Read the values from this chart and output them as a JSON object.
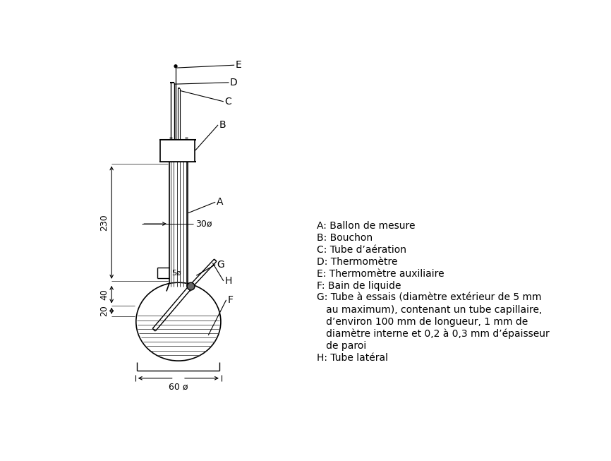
{
  "bg_color": "#ffffff",
  "lc": "#000000",
  "dim_230": "230",
  "dim_40": "40",
  "dim_20": "20",
  "dim_30phi": "30ø",
  "dim_60phi": "60 ø",
  "dim_5phi": "5ø",
  "label_A": "A",
  "label_B": "B",
  "label_C": "C",
  "label_D": "D",
  "label_E": "E",
  "label_G": "G",
  "label_H": "H",
  "label_F": "F",
  "legend": [
    "A: Ballon de mesure",
    "B: Bouchon",
    "C: Tube d’aération",
    "D: Thermomètre",
    "E: Thermomètre auxiliaire",
    "F: Bain de liquide",
    "G: Tube à essais (diamètre extérieur de 5 mm",
    "   au maximum), contenant un tube capillaire,",
    "   d’environ 100 mm de longueur, 1 mm de",
    "   diamètre interne et 0,2 à 0,3 mm d’épaisseur",
    "   de paroi",
    "H: Tube latéral"
  ]
}
